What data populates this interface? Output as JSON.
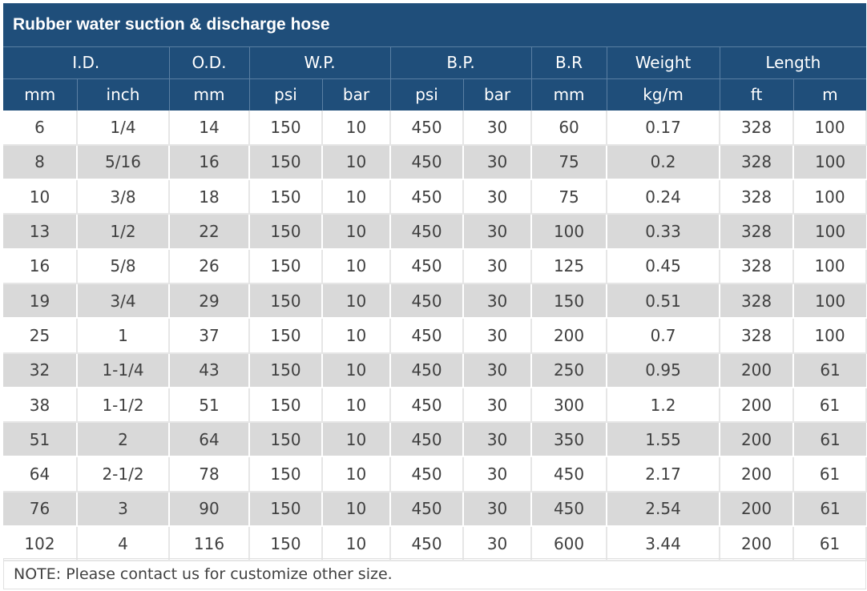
{
  "title": "Rubber water suction & discharge hose",
  "header_groups": [
    {
      "label": "I.D.",
      "span": 2
    },
    {
      "label": "O.D.",
      "span": 1
    },
    {
      "label": "W.P.",
      "span": 2
    },
    {
      "label": "B.P.",
      "span": 2
    },
    {
      "label": "B.R",
      "span": 1
    },
    {
      "label": "Weight",
      "span": 1
    },
    {
      "label": "Length",
      "span": 2
    }
  ],
  "units": [
    "mm",
    "inch",
    "mm",
    "psi",
    "bar",
    "psi",
    "bar",
    "mm",
    "kg/m",
    "ft",
    "m"
  ],
  "rows": [
    [
      "6",
      "1/4",
      "14",
      "150",
      "10",
      "450",
      "30",
      "60",
      "0.17",
      "328",
      "100"
    ],
    [
      "8",
      "5/16",
      "16",
      "150",
      "10",
      "450",
      "30",
      "75",
      "0.2",
      "328",
      "100"
    ],
    [
      "10",
      "3/8",
      "18",
      "150",
      "10",
      "450",
      "30",
      "75",
      "0.24",
      "328",
      "100"
    ],
    [
      "13",
      "1/2",
      "22",
      "150",
      "10",
      "450",
      "30",
      "100",
      "0.33",
      "328",
      "100"
    ],
    [
      "16",
      "5/8",
      "26",
      "150",
      "10",
      "450",
      "30",
      "125",
      "0.45",
      "328",
      "100"
    ],
    [
      "19",
      "3/4",
      "29",
      "150",
      "10",
      "450",
      "30",
      "150",
      "0.51",
      "328",
      "100"
    ],
    [
      "25",
      "1",
      "37",
      "150",
      "10",
      "450",
      "30",
      "200",
      "0.7",
      "328",
      "100"
    ],
    [
      "32",
      "1-1/4",
      "43",
      "150",
      "10",
      "450",
      "30",
      "250",
      "0.95",
      "200",
      "61"
    ],
    [
      "38",
      "1-1/2",
      "51",
      "150",
      "10",
      "450",
      "30",
      "300",
      "1.2",
      "200",
      "61"
    ],
    [
      "51",
      "2",
      "64",
      "150",
      "10",
      "450",
      "30",
      "350",
      "1.55",
      "200",
      "61"
    ],
    [
      "64",
      "2-1/2",
      "78",
      "150",
      "10",
      "450",
      "30",
      "450",
      "2.17",
      "200",
      "61"
    ],
    [
      "76",
      "3",
      "90",
      "150",
      "10",
      "450",
      "30",
      "450",
      "2.54",
      "200",
      "61"
    ],
    [
      "102",
      "4",
      "116",
      "150",
      "10",
      "450",
      "30",
      "600",
      "3.44",
      "200",
      "61"
    ]
  ],
  "note": "NOTE: Please contact us for customize other size.",
  "colors": {
    "header_bg": "#1f4e7a",
    "stripe": "#d9d9d9",
    "text": "#404040"
  }
}
